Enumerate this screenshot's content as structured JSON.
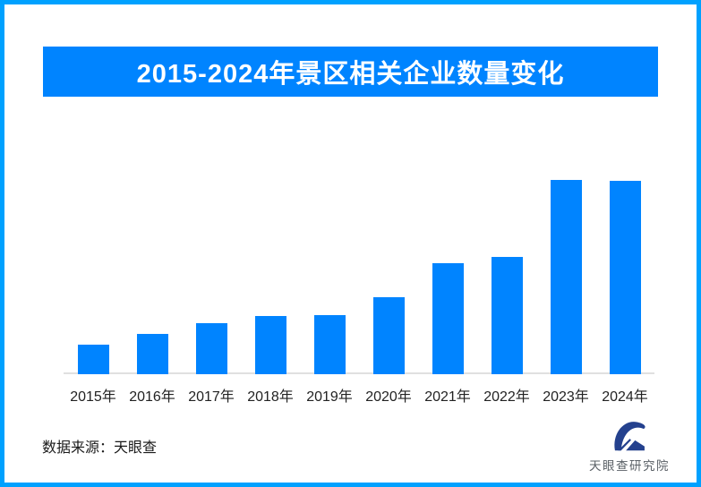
{
  "banner": {
    "title": "2015-2024年景区相关企业数量变化"
  },
  "chart_data": {
    "type": "bar",
    "title": "2015-2024年景区相关企业数量变化",
    "categories": [
      "2015年",
      "2016年",
      "2017年",
      "2018年",
      "2019年",
      "2020年",
      "2021年",
      "2022年",
      "2023年",
      "2024年"
    ],
    "values_relative": [
      33,
      45,
      57,
      65,
      66,
      86,
      124,
      131,
      217,
      216
    ],
    "value_axis_note": "no y-axis or value labels shown; values are relative bar heights (px)",
    "xlabel": "",
    "ylabel": "",
    "grid": false,
    "legend": false,
    "bar_color": "#0084FF",
    "axis_line_color": "#E0E0E0"
  },
  "footer": {
    "source": "数据来源：天眼查"
  },
  "logo": {
    "name": "天眼查研究院",
    "icon": "tianyancha-eye-icon"
  },
  "colors": {
    "frame_border": "#00A1FF",
    "banner_bg": "#0084FF",
    "banner_text": "#FFFFFF",
    "bar": "#0084FF",
    "axis_line": "#E0E0E0",
    "x_label_text": "#222222",
    "source_text": "#1A1A1A",
    "logo_blue": "#24418E",
    "logo_text": "#5A6066"
  }
}
